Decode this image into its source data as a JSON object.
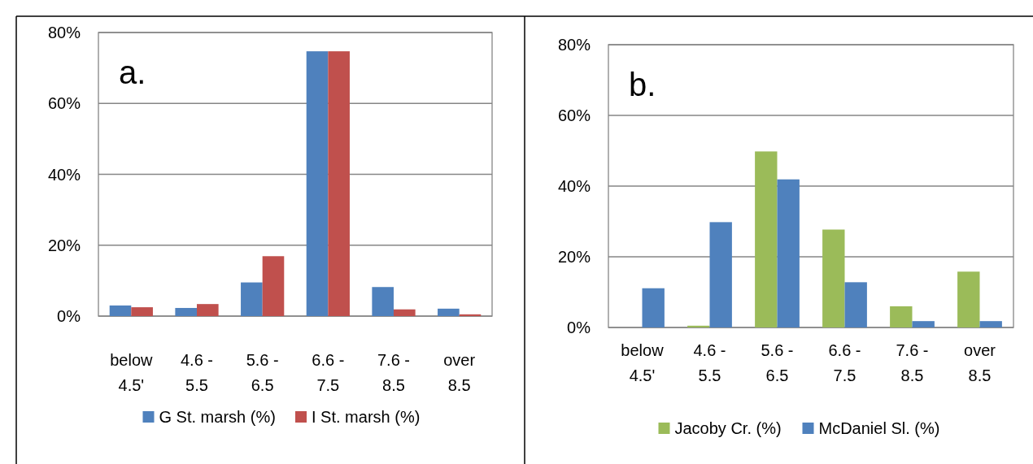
{
  "chart_data": [
    {
      "type": "bar",
      "annotations": [
        "a."
      ],
      "categories": [
        "below 4.5'",
        "4.6 - 5.5",
        "5.6 - 6.5",
        "6.6 - 7.5",
        "7.6 - 8.5",
        "over 8.5"
      ],
      "series": [
        {
          "name": "G St. marsh (%)",
          "color": "#4f81bd",
          "values": [
            3.0,
            2.3,
            9.5,
            74.7,
            8.2,
            2.1
          ]
        },
        {
          "name": "I St. marsh (%)",
          "color": "#c0504d",
          "values": [
            2.5,
            3.4,
            16.9,
            74.7,
            1.9,
            0.5
          ]
        }
      ],
      "ylim": [
        0,
        80
      ],
      "yticks": [
        {
          "value": 0,
          "label": "0%"
        },
        {
          "value": 20,
          "label": "20%"
        },
        {
          "value": 40,
          "label": "40%"
        },
        {
          "value": 60,
          "label": "60%"
        },
        {
          "value": 80,
          "label": "80%"
        }
      ],
      "grid": "y",
      "legend": "bottom"
    },
    {
      "type": "bar",
      "annotations": [
        "b."
      ],
      "categories": [
        "below 4.5'",
        "4.6 - 5.5",
        "5.6 - 6.5",
        "6.6 - 7.5",
        "7.6 - 8.5",
        "over 8.5"
      ],
      "series": [
        {
          "name": "Jacoby Cr. (%)",
          "color": "#9bbb59",
          "values": [
            0,
            0.5,
            49.8,
            27.7,
            6.0,
            15.8
          ]
        },
        {
          "name": "McDaniel Sl. (%)",
          "color": "#4f81bd",
          "values": [
            11.1,
            29.8,
            41.9,
            12.8,
            1.8,
            1.8
          ]
        }
      ],
      "ylim": [
        0,
        80
      ],
      "yticks": [
        {
          "value": 0,
          "label": "0%"
        },
        {
          "value": 20,
          "label": "20%"
        },
        {
          "value": 40,
          "label": "40%"
        },
        {
          "value": 60,
          "label": "60%"
        },
        {
          "value": 80,
          "label": "80%"
        }
      ],
      "grid": "y",
      "legend": "bottom"
    }
  ]
}
